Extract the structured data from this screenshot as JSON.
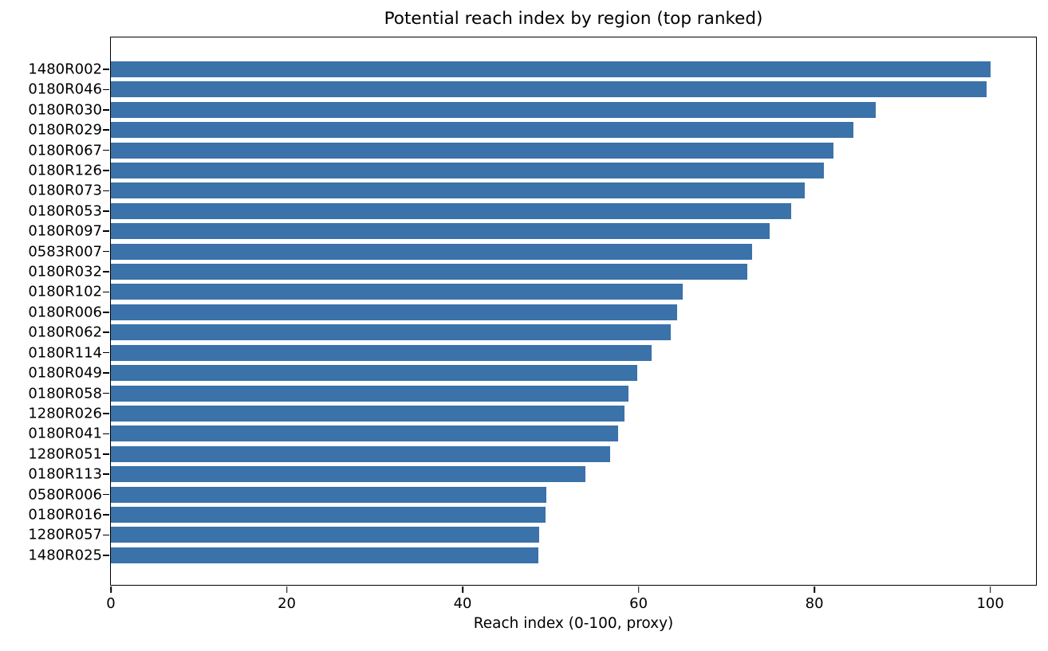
{
  "chart_data": {
    "type": "bar",
    "orientation": "horizontal",
    "title": "Potential reach index by region (top ranked)",
    "xlabel": "Reach index (0-100, proxy)",
    "categories": [
      "1480R002",
      "0180R046",
      "0180R030",
      "0180R029",
      "0180R067",
      "0180R126",
      "0180R073",
      "0180R053",
      "0180R097",
      "0583R007",
      "0180R032",
      "0180R102",
      "0180R006",
      "0180R062",
      "0180R114",
      "0180R049",
      "0180R058",
      "1280R026",
      "0180R041",
      "1280R051",
      "0180R113",
      "0580R006",
      "0180R016",
      "1280R057",
      "1480R025"
    ],
    "values": [
      100,
      99.6,
      87.0,
      84.4,
      82.2,
      81.1,
      78.9,
      77.4,
      74.9,
      72.9,
      72.4,
      65.0,
      64.4,
      63.7,
      61.5,
      59.9,
      58.9,
      58.4,
      57.7,
      56.8,
      54.0,
      49.5,
      49.4,
      48.7,
      48.6
    ],
    "xticks": [
      0,
      20,
      40,
      60,
      80,
      100
    ],
    "xlim": [
      0,
      105.2
    ],
    "grid": false,
    "legend": null,
    "bar_color": "#3b72a9",
    "axis_color": "#000000",
    "text_color": "#000000"
  }
}
